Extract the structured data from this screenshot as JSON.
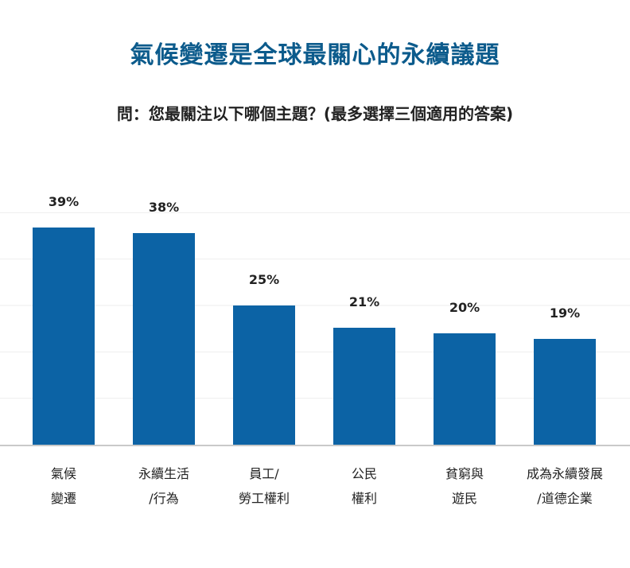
{
  "chart_data": {
    "type": "bar",
    "title": "氣候變遷是全球最關心的永續議題",
    "subtitle": "問：您最關注以下哪個主題？(最多選擇三個適用的答案)",
    "categories": [
      [
        "氣候",
        "變遷"
      ],
      [
        "永續生活",
        "/行為"
      ],
      [
        "員工/",
        "勞工權利"
      ],
      [
        "公民",
        "權利"
      ],
      [
        "貧窮與",
        "遊民"
      ],
      [
        "成為永續發展",
        "/道德企業"
      ]
    ],
    "values": [
      39,
      38,
      25,
      21,
      20,
      19
    ],
    "value_labels": [
      "39%",
      "38%",
      "25%",
      "21%",
      "20%",
      "19%"
    ],
    "ylim": [
      0,
      50
    ],
    "unit": "%",
    "grid": true,
    "bar_color": "#0c63a5",
    "grid_color": "#eeeeee",
    "axis_color": "#c9c9c9"
  }
}
